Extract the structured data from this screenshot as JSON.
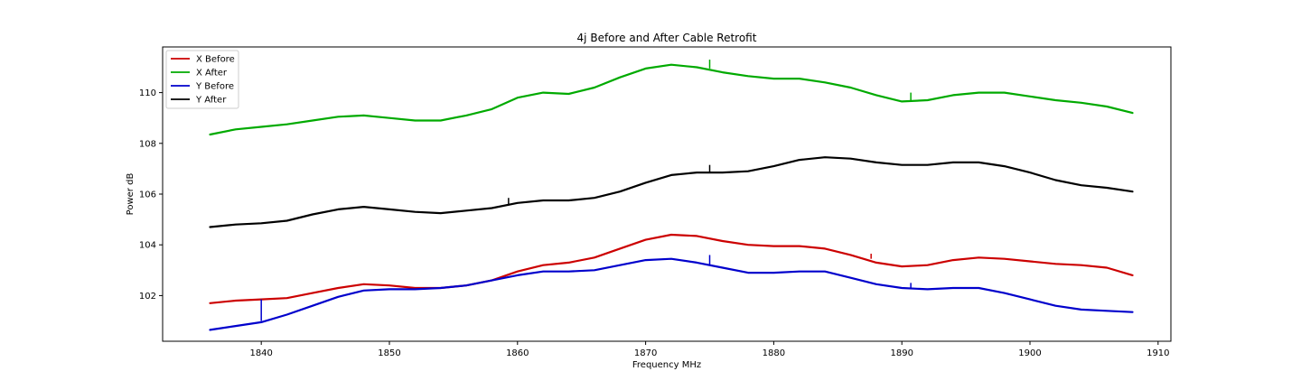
{
  "chart_data": {
    "type": "line",
    "title": "4j Before and After Cable Retrofit",
    "xlabel": "Frequency MHz",
    "ylabel": "Power dB",
    "xlim": [
      1832.3,
      1911.0
    ],
    "ylim": [
      100.2,
      111.8
    ],
    "xticks": [
      1840,
      1850,
      1860,
      1870,
      1880,
      1890,
      1900,
      1910
    ],
    "yticks": [
      102,
      104,
      106,
      108,
      110
    ],
    "grid": false,
    "legend_position": "top-left",
    "series": [
      {
        "name": "X Before",
        "color": "#cc0000",
        "x": [
          1836,
          1838,
          1840,
          1842,
          1844,
          1846,
          1848,
          1850,
          1852,
          1854,
          1856,
          1858,
          1860,
          1862,
          1864,
          1866,
          1868,
          1870,
          1872,
          1874,
          1876,
          1878,
          1880,
          1882,
          1884,
          1886,
          1888,
          1890,
          1892,
          1894,
          1896,
          1898,
          1900,
          1902,
          1904,
          1906,
          1908
        ],
        "y": [
          101.7,
          101.8,
          101.85,
          101.9,
          102.1,
          102.3,
          102.45,
          102.4,
          102.3,
          102.3,
          102.4,
          102.6,
          102.95,
          103.2,
          103.3,
          103.5,
          103.85,
          104.2,
          104.4,
          104.35,
          104.15,
          104.0,
          103.95,
          103.95,
          103.85,
          103.6,
          103.3,
          103.15,
          103.2,
          103.4,
          103.5,
          103.45,
          103.35,
          103.25,
          103.2,
          103.1,
          102.8
        ]
      },
      {
        "name": "X After",
        "color": "#00aa00",
        "x": [
          1836,
          1838,
          1840,
          1842,
          1844,
          1846,
          1848,
          1850,
          1852,
          1854,
          1856,
          1858,
          1860,
          1862,
          1864,
          1866,
          1868,
          1870,
          1872,
          1874,
          1876,
          1878,
          1880,
          1882,
          1884,
          1886,
          1888,
          1890,
          1892,
          1894,
          1896,
          1898,
          1900,
          1902,
          1904,
          1906,
          1908
        ],
        "y": [
          108.35,
          108.55,
          108.65,
          108.75,
          108.9,
          109.05,
          109.1,
          109.0,
          108.9,
          108.9,
          109.1,
          109.35,
          109.8,
          110.0,
          109.95,
          110.2,
          110.6,
          110.95,
          111.1,
          111.0,
          110.8,
          110.65,
          110.55,
          110.55,
          110.4,
          110.2,
          109.9,
          109.65,
          109.7,
          109.9,
          110.0,
          110.0,
          109.85,
          109.7,
          109.6,
          109.45,
          109.2
        ]
      },
      {
        "name": "Y Before",
        "color": "#0000cc",
        "x": [
          1836,
          1838,
          1840,
          1842,
          1844,
          1846,
          1848,
          1850,
          1852,
          1854,
          1856,
          1858,
          1860,
          1862,
          1864,
          1866,
          1868,
          1870,
          1872,
          1874,
          1876,
          1878,
          1880,
          1882,
          1884,
          1886,
          1888,
          1890,
          1892,
          1894,
          1896,
          1898,
          1900,
          1902,
          1904,
          1906,
          1908
        ],
        "y": [
          100.65,
          100.8,
          100.95,
          101.25,
          101.6,
          101.95,
          102.2,
          102.25,
          102.25,
          102.3,
          102.4,
          102.6,
          102.8,
          102.95,
          102.95,
          103.0,
          103.2,
          103.4,
          103.45,
          103.3,
          103.1,
          102.9,
          102.9,
          102.95,
          102.95,
          102.7,
          102.45,
          102.3,
          102.25,
          102.3,
          102.3,
          102.1,
          101.85,
          101.6,
          101.45,
          101.4,
          101.35
        ]
      },
      {
        "name": "Y After",
        "color": "#000000",
        "x": [
          1836,
          1838,
          1840,
          1842,
          1844,
          1846,
          1848,
          1850,
          1852,
          1854,
          1856,
          1858,
          1860,
          1862,
          1864,
          1866,
          1868,
          1870,
          1872,
          1874,
          1876,
          1878,
          1880,
          1882,
          1884,
          1886,
          1888,
          1890,
          1892,
          1894,
          1896,
          1898,
          1900,
          1902,
          1904,
          1906,
          1908
        ],
        "y": [
          104.7,
          104.8,
          104.85,
          104.95,
          105.2,
          105.4,
          105.5,
          105.4,
          105.3,
          105.25,
          105.35,
          105.45,
          105.65,
          105.75,
          105.75,
          105.85,
          106.1,
          106.45,
          106.75,
          106.85,
          106.85,
          106.9,
          107.1,
          107.35,
          107.45,
          107.4,
          107.25,
          107.15,
          107.15,
          107.25,
          107.25,
          107.1,
          106.85,
          106.55,
          106.35,
          106.25,
          106.1
        ]
      }
    ],
    "spikes": [
      {
        "series": "Y Before",
        "x": 1840.0,
        "y_base": 101.0,
        "y_top": 101.85
      },
      {
        "series": "X After",
        "x": 1875.0,
        "y_base": 110.95,
        "y_top": 111.3
      },
      {
        "series": "X After",
        "x": 1890.7,
        "y_base": 109.65,
        "y_top": 110.0
      },
      {
        "series": "Y After",
        "x": 1859.3,
        "y_base": 105.55,
        "y_top": 105.85
      },
      {
        "series": "Y After",
        "x": 1875.0,
        "y_base": 106.85,
        "y_top": 107.15
      },
      {
        "series": "Y Before",
        "x": 1875.0,
        "y_base": 103.2,
        "y_top": 103.6
      },
      {
        "series": "X Before",
        "x": 1887.6,
        "y_base": 103.45,
        "y_top": 103.65
      },
      {
        "series": "Y Before",
        "x": 1890.7,
        "y_base": 102.3,
        "y_top": 102.5
      }
    ]
  }
}
